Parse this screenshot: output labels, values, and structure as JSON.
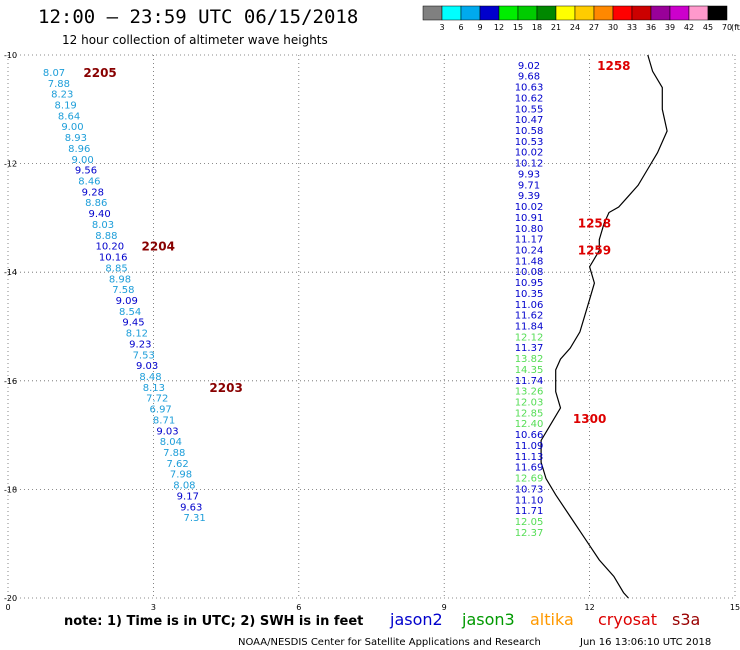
{
  "header": {
    "title": "12:00 – 23:59 UTC 06/15/2018",
    "subtitle": "12 hour collection of altimeter wave heights"
  },
  "color_scale": {
    "labels": [
      "3",
      "6",
      "9",
      "12",
      "15",
      "18",
      "21",
      "24",
      "27",
      "30",
      "33",
      "36",
      "39",
      "42",
      "45",
      "70"
    ],
    "unit": "(ft)",
    "colors": [
      "#808080",
      "#00ffff",
      "#00aaee",
      "#0000cc",
      "#00ee00",
      "#00cc00",
      "#008800",
      "#ffff00",
      "#ffcc00",
      "#ff8800",
      "#ff0000",
      "#cc0000",
      "#990099",
      "#cc00cc",
      "#ff99cc",
      "#000000"
    ]
  },
  "chart_data": {
    "type": "scatter",
    "x_ticks": [
      "0",
      "3",
      "6",
      "9",
      "12",
      "15"
    ],
    "y_ticks": [
      "-10",
      "-12",
      "-14",
      "-16",
      "-18",
      "-20"
    ],
    "xlim": [
      0,
      15
    ],
    "ylim": [
      -20,
      -10
    ],
    "grid": true,
    "west_track": [
      {
        "x": 0.95,
        "y": -10.33,
        "v": "8.07",
        "c": "#1e9ed9"
      },
      {
        "x": 1.05,
        "y": -10.53,
        "v": "7.88",
        "c": "#1e9ed9"
      },
      {
        "x": 1.12,
        "y": -10.73,
        "v": "8.23",
        "c": "#1e9ed9"
      },
      {
        "x": 1.19,
        "y": -10.93,
        "v": "8.19",
        "c": "#1e9ed9"
      },
      {
        "x": 1.26,
        "y": -11.13,
        "v": "8.64",
        "c": "#1e9ed9"
      },
      {
        "x": 1.33,
        "y": -11.33,
        "v": "9.00",
        "c": "#1e9ed9"
      },
      {
        "x": 1.4,
        "y": -11.53,
        "v": "8.93",
        "c": "#1e9ed9"
      },
      {
        "x": 1.47,
        "y": -11.73,
        "v": "8.96",
        "c": "#1e9ed9"
      },
      {
        "x": 1.54,
        "y": -11.93,
        "v": "9.00",
        "c": "#1e9ed9"
      },
      {
        "x": 1.61,
        "y": -12.13,
        "v": "9.56",
        "c": "#0000cc"
      },
      {
        "x": 1.68,
        "y": -12.33,
        "v": "8.46",
        "c": "#1e9ed9"
      },
      {
        "x": 1.75,
        "y": -12.53,
        "v": "9.28",
        "c": "#0000cc"
      },
      {
        "x": 1.82,
        "y": -12.73,
        "v": "8.86",
        "c": "#1e9ed9"
      },
      {
        "x": 1.89,
        "y": -12.93,
        "v": "9.40",
        "c": "#0000cc"
      },
      {
        "x": 1.96,
        "y": -13.13,
        "v": "8.03",
        "c": "#1e9ed9"
      },
      {
        "x": 2.03,
        "y": -13.33,
        "v": "8.88",
        "c": "#1e9ed9"
      },
      {
        "x": 2.1,
        "y": -13.53,
        "v": "10.20",
        "c": "#0000cc"
      },
      {
        "x": 2.17,
        "y": -13.73,
        "v": "10.16",
        "c": "#0000cc"
      },
      {
        "x": 2.24,
        "y": -13.93,
        "v": "8.85",
        "c": "#1e9ed9"
      },
      {
        "x": 2.31,
        "y": -14.13,
        "v": "8.98",
        "c": "#1e9ed9"
      },
      {
        "x": 2.38,
        "y": -14.33,
        "v": "7.58",
        "c": "#1e9ed9"
      },
      {
        "x": 2.45,
        "y": -14.53,
        "v": "9.09",
        "c": "#0000cc"
      },
      {
        "x": 2.52,
        "y": -14.73,
        "v": "8.54",
        "c": "#1e9ed9"
      },
      {
        "x": 2.59,
        "y": -14.93,
        "v": "9.45",
        "c": "#0000cc"
      },
      {
        "x": 2.66,
        "y": -15.13,
        "v": "8.12",
        "c": "#1e9ed9"
      },
      {
        "x": 2.73,
        "y": -15.33,
        "v": "9.23",
        "c": "#0000cc"
      },
      {
        "x": 2.8,
        "y": -15.53,
        "v": "7.53",
        "c": "#1e9ed9"
      },
      {
        "x": 2.87,
        "y": -15.73,
        "v": "9.03",
        "c": "#0000cc"
      },
      {
        "x": 2.94,
        "y": -15.93,
        "v": "8.48",
        "c": "#1e9ed9"
      },
      {
        "x": 3.01,
        "y": -16.13,
        "v": "8.13",
        "c": "#1e9ed9"
      },
      {
        "x": 3.08,
        "y": -16.33,
        "v": "7.72",
        "c": "#1e9ed9"
      },
      {
        "x": 3.15,
        "y": -16.53,
        "v": "6.97",
        "c": "#1e9ed9"
      },
      {
        "x": 3.22,
        "y": -16.73,
        "v": "8.71",
        "c": "#1e9ed9"
      },
      {
        "x": 3.29,
        "y": -16.93,
        "v": "9.03",
        "c": "#0000cc"
      },
      {
        "x": 3.36,
        "y": -17.13,
        "v": "8.04",
        "c": "#1e9ed9"
      },
      {
        "x": 3.43,
        "y": -17.33,
        "v": "7.88",
        "c": "#1e9ed9"
      },
      {
        "x": 3.5,
        "y": -17.53,
        "v": "7.62",
        "c": "#1e9ed9"
      },
      {
        "x": 3.57,
        "y": -17.73,
        "v": "7.98",
        "c": "#1e9ed9"
      },
      {
        "x": 3.64,
        "y": -17.93,
        "v": "8.08",
        "c": "#1e9ed9"
      },
      {
        "x": 3.71,
        "y": -18.13,
        "v": "9.17",
        "c": "#0000cc"
      },
      {
        "x": 3.78,
        "y": -18.33,
        "v": "9.63",
        "c": "#0000cc"
      },
      {
        "x": 3.85,
        "y": -18.53,
        "v": "7.31",
        "c": "#1e9ed9"
      }
    ],
    "west_times": [
      {
        "x": 1.9,
        "y": -10.33,
        "t": "2205",
        "c": "#880000"
      },
      {
        "x": 3.1,
        "y": -13.53,
        "t": "2204",
        "c": "#880000"
      },
      {
        "x": 4.5,
        "y": -16.13,
        "t": "2203",
        "c": "#880000"
      }
    ],
    "east_track": [
      {
        "x": 10.75,
        "y": -10.2,
        "v": "9.02",
        "c": "#0000cc"
      },
      {
        "x": 10.75,
        "y": -10.4,
        "v": "9.68",
        "c": "#0000cc"
      },
      {
        "x": 10.75,
        "y": -10.6,
        "v": "10.63",
        "c": "#0000cc"
      },
      {
        "x": 10.75,
        "y": -10.8,
        "v": "10.62",
        "c": "#0000cc"
      },
      {
        "x": 10.75,
        "y": -11.0,
        "v": "10.55",
        "c": "#0000cc"
      },
      {
        "x": 10.75,
        "y": -11.2,
        "v": "10.47",
        "c": "#0000cc"
      },
      {
        "x": 10.75,
        "y": -11.4,
        "v": "10.58",
        "c": "#0000cc"
      },
      {
        "x": 10.75,
        "y": -11.6,
        "v": "10.53",
        "c": "#0000cc"
      },
      {
        "x": 10.75,
        "y": -11.8,
        "v": "10.02",
        "c": "#0000cc"
      },
      {
        "x": 10.75,
        "y": -12.0,
        "v": "10.12",
        "c": "#0000cc"
      },
      {
        "x": 10.75,
        "y": -12.2,
        "v": "9.93",
        "c": "#0000cc"
      },
      {
        "x": 10.75,
        "y": -12.4,
        "v": "9.71",
        "c": "#0000cc"
      },
      {
        "x": 10.75,
        "y": -12.6,
        "v": "9.39",
        "c": "#0000cc"
      },
      {
        "x": 10.75,
        "y": -12.8,
        "v": "10.02",
        "c": "#0000cc"
      },
      {
        "x": 10.75,
        "y": -13.0,
        "v": "10.91",
        "c": "#0000cc"
      },
      {
        "x": 10.75,
        "y": -13.2,
        "v": "10.80",
        "c": "#0000cc"
      },
      {
        "x": 10.75,
        "y": -13.4,
        "v": "11.17",
        "c": "#0000cc"
      },
      {
        "x": 10.75,
        "y": -13.6,
        "v": "10.24",
        "c": "#0000cc"
      },
      {
        "x": 10.75,
        "y": -13.8,
        "v": "11.48",
        "c": "#0000cc"
      },
      {
        "x": 10.75,
        "y": -14.0,
        "v": "10.08",
        "c": "#0000cc"
      },
      {
        "x": 10.75,
        "y": -14.2,
        "v": "10.95",
        "c": "#0000cc"
      },
      {
        "x": 10.75,
        "y": -14.4,
        "v": "10.35",
        "c": "#0000cc"
      },
      {
        "x": 10.75,
        "y": -14.6,
        "v": "11.06",
        "c": "#0000cc"
      },
      {
        "x": 10.75,
        "y": -14.8,
        "v": "11.62",
        "c": "#0000cc"
      },
      {
        "x": 10.75,
        "y": -15.0,
        "v": "11.84",
        "c": "#0000cc"
      },
      {
        "x": 10.75,
        "y": -15.2,
        "v": "12.12",
        "c": "#55dd55"
      },
      {
        "x": 10.75,
        "y": -15.4,
        "v": "11.37",
        "c": "#0000cc"
      },
      {
        "x": 10.75,
        "y": -15.6,
        "v": "13.82",
        "c": "#55dd55"
      },
      {
        "x": 10.75,
        "y": -15.8,
        "v": "14.35",
        "c": "#55dd55"
      },
      {
        "x": 10.75,
        "y": -16.0,
        "v": "11.74",
        "c": "#0000cc"
      },
      {
        "x": 10.75,
        "y": -16.2,
        "v": "13.26",
        "c": "#55dd55"
      },
      {
        "x": 10.75,
        "y": -16.4,
        "v": "12.03",
        "c": "#55dd55"
      },
      {
        "x": 10.75,
        "y": -16.6,
        "v": "12.85",
        "c": "#55dd55"
      },
      {
        "x": 10.75,
        "y": -16.8,
        "v": "12.40",
        "c": "#55dd55"
      },
      {
        "x": 10.75,
        "y": -17.0,
        "v": "10.66",
        "c": "#0000cc"
      },
      {
        "x": 10.75,
        "y": -17.2,
        "v": "11.09",
        "c": "#0000cc"
      },
      {
        "x": 10.75,
        "y": -17.4,
        "v": "11.13",
        "c": "#0000cc"
      },
      {
        "x": 10.75,
        "y": -17.6,
        "v": "11.69",
        "c": "#0000cc"
      },
      {
        "x": 10.75,
        "y": -17.8,
        "v": "12.69",
        "c": "#55dd55"
      },
      {
        "x": 10.75,
        "y": -18.0,
        "v": "10.73",
        "c": "#0000cc"
      },
      {
        "x": 10.75,
        "y": -18.2,
        "v": "11.10",
        "c": "#0000cc"
      },
      {
        "x": 10.75,
        "y": -18.4,
        "v": "11.71",
        "c": "#0000cc"
      },
      {
        "x": 10.75,
        "y": -18.6,
        "v": "12.05",
        "c": "#55dd55"
      },
      {
        "x": 10.75,
        "y": -18.8,
        "v": "12.37",
        "c": "#55dd55"
      }
    ],
    "east_times": [
      {
        "x": 12.5,
        "y": -10.2,
        "t": "1258",
        "c": "#dd0000"
      },
      {
        "x": 12.1,
        "y": -13.1,
        "t": "1258",
        "c": "#dd0000"
      },
      {
        "x": 12.1,
        "y": -13.6,
        "t": "1259",
        "c": "#dd0000"
      },
      {
        "x": 12.0,
        "y": -16.7,
        "t": "1300",
        "c": "#dd0000"
      }
    ],
    "coastline": [
      [
        13.2,
        -10.0
      ],
      [
        13.3,
        -10.3
      ],
      [
        13.5,
        -10.6
      ],
      [
        13.5,
        -11.0
      ],
      [
        13.6,
        -11.4
      ],
      [
        13.4,
        -11.8
      ],
      [
        13.2,
        -12.1
      ],
      [
        13.0,
        -12.4
      ],
      [
        12.8,
        -12.6
      ],
      [
        12.6,
        -12.8
      ],
      [
        12.4,
        -12.9
      ],
      [
        12.3,
        -13.1
      ],
      [
        12.2,
        -13.4
      ],
      [
        12.2,
        -13.6
      ],
      [
        12.0,
        -13.9
      ],
      [
        12.1,
        -14.2
      ],
      [
        12.0,
        -14.5
      ],
      [
        11.9,
        -14.8
      ],
      [
        11.8,
        -15.1
      ],
      [
        11.6,
        -15.4
      ],
      [
        11.4,
        -15.6
      ],
      [
        11.3,
        -15.8
      ],
      [
        11.3,
        -16.2
      ],
      [
        11.4,
        -16.5
      ],
      [
        11.2,
        -16.8
      ],
      [
        11.0,
        -17.1
      ],
      [
        11.0,
        -17.5
      ],
      [
        11.1,
        -17.8
      ],
      [
        11.3,
        -18.1
      ],
      [
        11.6,
        -18.5
      ],
      [
        11.9,
        -18.9
      ],
      [
        12.2,
        -19.3
      ],
      [
        12.5,
        -19.6
      ],
      [
        12.7,
        -19.9
      ],
      [
        12.8,
        -20.0
      ]
    ]
  },
  "footer": {
    "note": "note:  1) Time is in UTC;  2) SWH is in feet",
    "satellites": [
      {
        "name": "jason2",
        "color": "#0000cc"
      },
      {
        "name": "jason3",
        "color": "#009900"
      },
      {
        "name": "altika",
        "color": "#ff9900"
      },
      {
        "name": "cryosat",
        "color": "#dd0000"
      },
      {
        "name": "s3a",
        "color": "#990000"
      }
    ],
    "credit": "NOAA/NESDIS Center for Satellite Applications and Research",
    "timestamp": "Jun 16 13:06:10 UTC 2018"
  }
}
